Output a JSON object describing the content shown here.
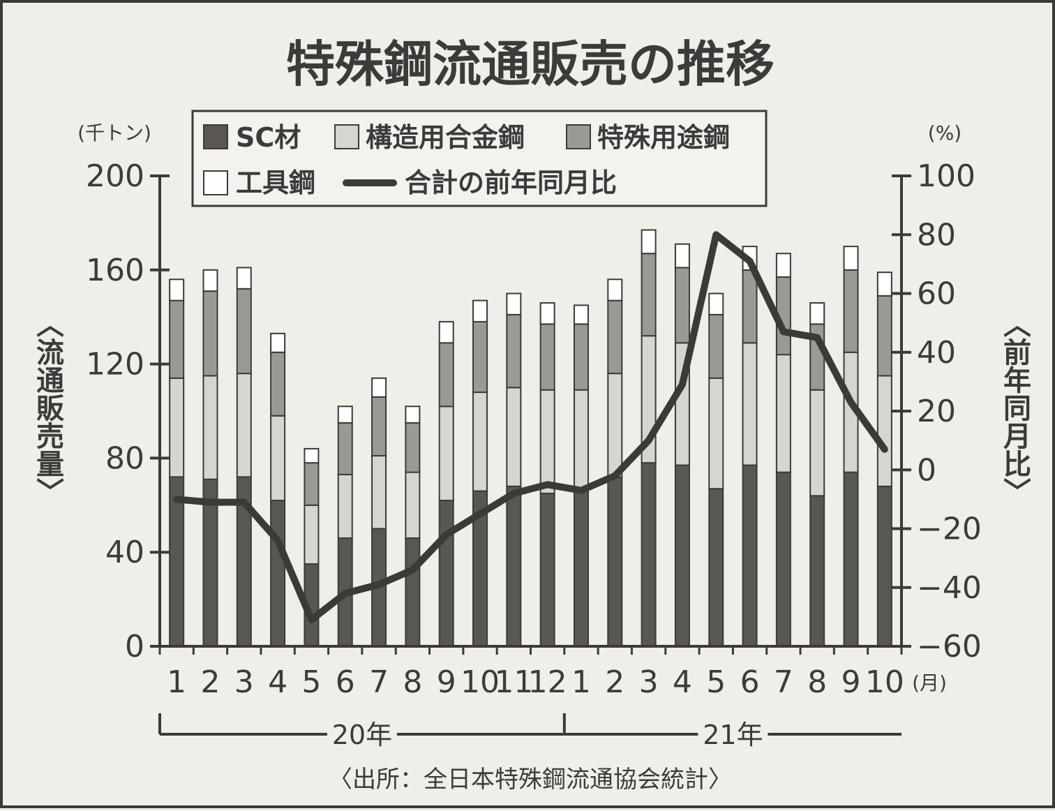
{
  "chart_data": {
    "type": "bar",
    "stacked": true,
    "title": "特殊鋼流通販売の推移",
    "left_axis": {
      "unit": "(千トン)",
      "label": "〈流通販売量〉",
      "ylim": [
        0,
        200
      ],
      "ticks": [
        0,
        40,
        80,
        120,
        160,
        200
      ]
    },
    "right_axis": {
      "unit": "(%)",
      "label": "〈前年同月比〉",
      "ylim": [
        -60,
        100
      ],
      "ticks": [
        -60,
        -40,
        -20,
        0,
        20,
        40,
        60,
        80,
        100
      ],
      "tick_labels": [
        "−60",
        "−40",
        "−20",
        "0",
        "20",
        "40",
        "60",
        "80",
        "100"
      ]
    },
    "categories": [
      "1",
      "2",
      "3",
      "4",
      "5",
      "6",
      "7",
      "8",
      "9",
      "10",
      "11",
      "12",
      "1",
      "2",
      "3",
      "4",
      "5",
      "6",
      "7",
      "8",
      "9",
      "10"
    ],
    "x_unit": "(月)",
    "years": [
      {
        "label": "20年",
        "start_index": 0,
        "end_index": 11
      },
      {
        "label": "21年",
        "start_index": 12,
        "end_index": 21
      }
    ],
    "series": [
      {
        "name": "SC材",
        "type": "bar",
        "color": "#5a5652",
        "values": [
          72,
          71,
          72,
          62,
          35,
          46,
          50,
          46,
          62,
          66,
          68,
          65,
          66,
          72,
          78,
          77,
          67,
          77,
          74,
          64,
          74,
          68
        ]
      },
      {
        "name": "構造用合金鋼",
        "type": "bar",
        "color": "#d6d5d0",
        "values": [
          42,
          44,
          44,
          36,
          25,
          27,
          31,
          28,
          40,
          42,
          42,
          44,
          43,
          44,
          54,
          52,
          47,
          52,
          50,
          45,
          51,
          47
        ]
      },
      {
        "name": "特殊用途鋼",
        "type": "bar",
        "color": "#9a9994",
        "values": [
          33,
          36,
          36,
          27,
          18,
          22,
          25,
          21,
          27,
          30,
          31,
          28,
          28,
          31,
          35,
          32,
          27,
          31,
          33,
          28,
          35,
          34
        ]
      },
      {
        "name": "工具鋼",
        "type": "bar",
        "color": "#ffffff",
        "values": [
          9,
          9,
          9,
          8,
          6,
          7,
          8,
          7,
          9,
          9,
          9,
          9,
          8,
          9,
          10,
          10,
          9,
          10,
          10,
          9,
          10,
          10
        ]
      },
      {
        "name": "合計の前年同月比",
        "type": "line",
        "axis": "right",
        "color": "#3a3a37",
        "values": [
          -10,
          -11,
          -11,
          -24,
          -51,
          -42,
          -39,
          -34,
          -22,
          -15,
          -8,
          -5,
          -7,
          -2,
          10,
          29,
          80,
          71,
          47,
          45,
          23,
          7
        ]
      }
    ],
    "legend_position": "top-center",
    "grid": false,
    "source": "〈出所：全日本特殊鋼流通協会統計〉"
  }
}
